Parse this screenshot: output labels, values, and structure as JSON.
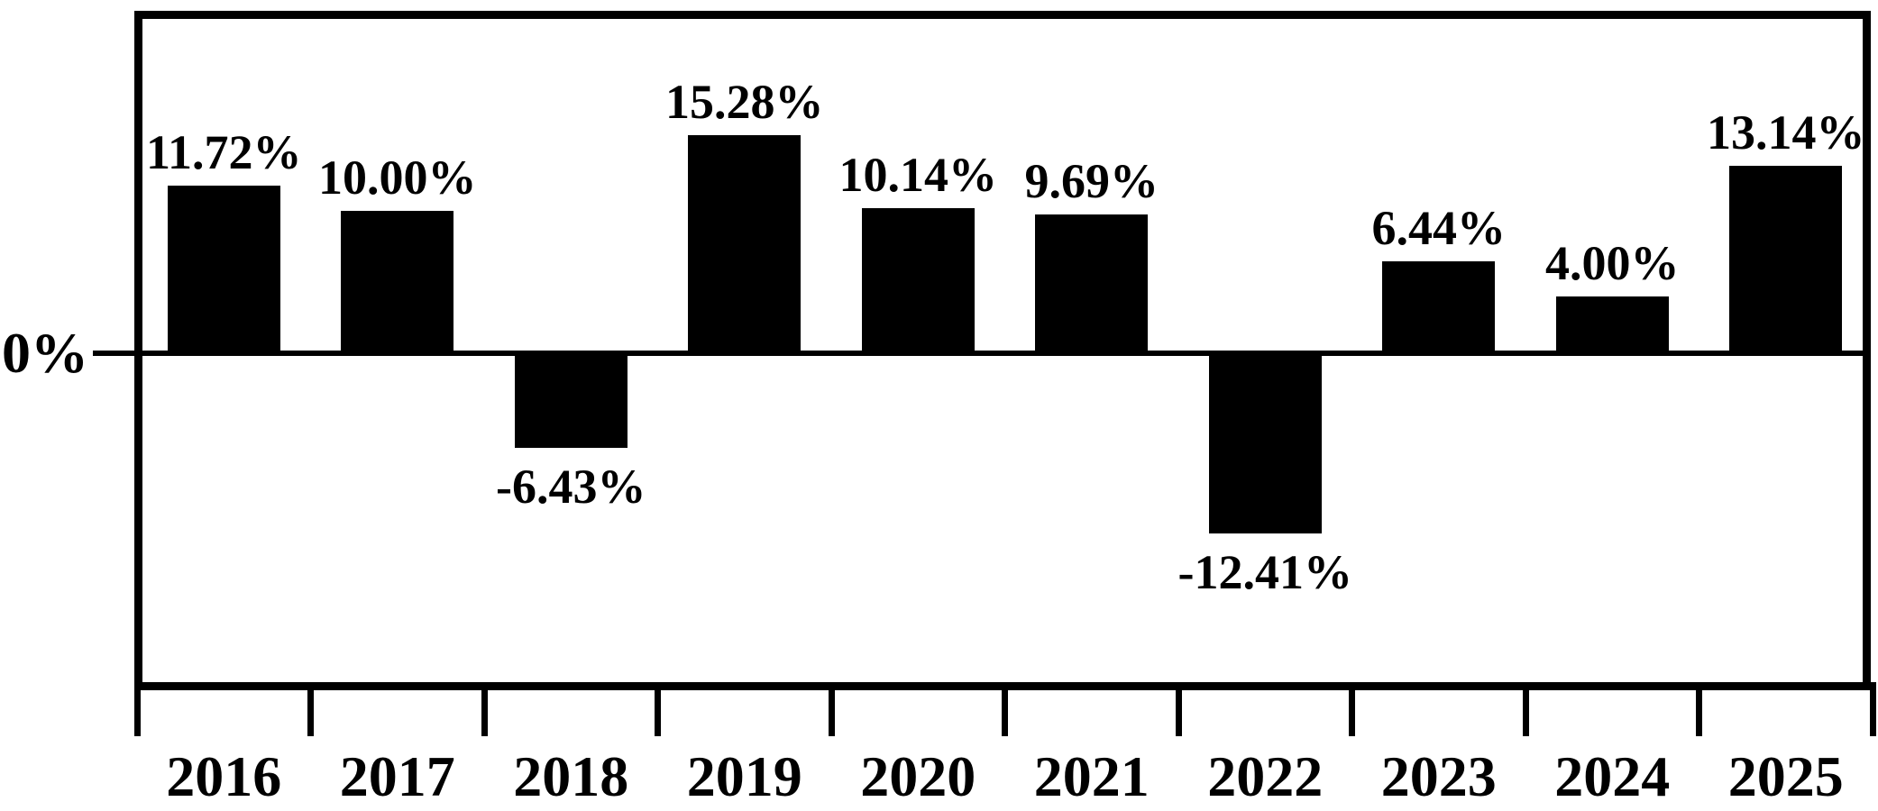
{
  "chart_data": {
    "type": "bar",
    "title": "",
    "xlabel": "",
    "ylabel": "",
    "categories": [
      "2016",
      "2017",
      "2018",
      "2019",
      "2020",
      "2021",
      "2022",
      "2023",
      "2024",
      "2025"
    ],
    "values": [
      11.72,
      10.0,
      -6.43,
      15.28,
      10.14,
      9.69,
      -12.41,
      6.44,
      4.0,
      13.14
    ],
    "bar_labels": [
      "11.72%",
      "10.00%",
      "-6.43%",
      "15.28%",
      "10.14%",
      "9.69%",
      "-12.41%",
      "6.44%",
      "4.00%",
      "13.14%"
    ],
    "y_axis": {
      "zero_label": "0%",
      "baseline_value": 0
    },
    "ylim": [
      -22,
      24
    ],
    "grid": false,
    "legend_position": "none",
    "bar_color": "#000000",
    "axis_color": "#000000",
    "background_color": "#ffffff"
  }
}
